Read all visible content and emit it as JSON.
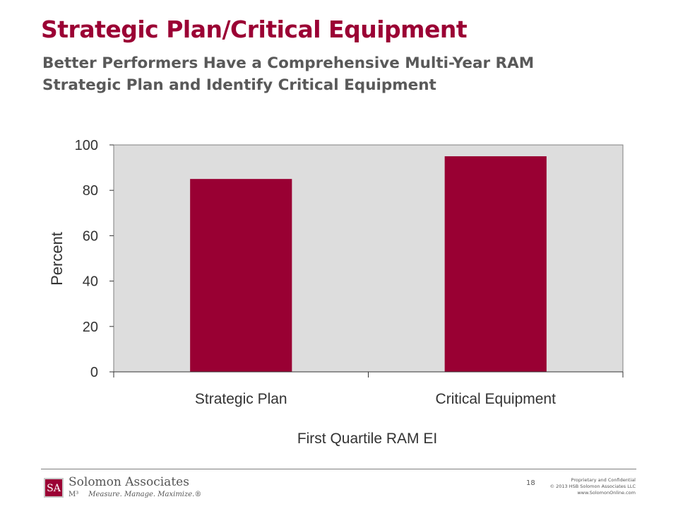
{
  "slide": {
    "title": "Strategic Plan/Critical Equipment",
    "subtitle_line1": "Better Performers Have a Comprehensive Multi-Year RAM",
    "subtitle_line2": "Strategic Plan and Identify Critical Equipment"
  },
  "chart_data": {
    "type": "bar",
    "categories": [
      "Strategic Plan",
      "Critical Equipment"
    ],
    "values": [
      85,
      95
    ],
    "xlabel": "First Quartile RAM EI",
    "ylabel": "Percent",
    "ylim": [
      0,
      100
    ],
    "yticks": [
      0,
      20,
      40,
      60,
      80,
      100
    ],
    "bar_color": "#990033",
    "plot_background": "#dddddd",
    "grid": false,
    "legend": "none"
  },
  "footer": {
    "logo_mark": "SA",
    "company_name": "Solomon Associates",
    "m3": "M³",
    "tagline": "Measure. Manage. Maximize.®",
    "page_number": "18",
    "legal_line1": "Proprietary and Confidential",
    "legal_line2": "© 2013 HSB Solomon Associates LLC",
    "legal_line3": "www.SolomonOnline.com"
  }
}
